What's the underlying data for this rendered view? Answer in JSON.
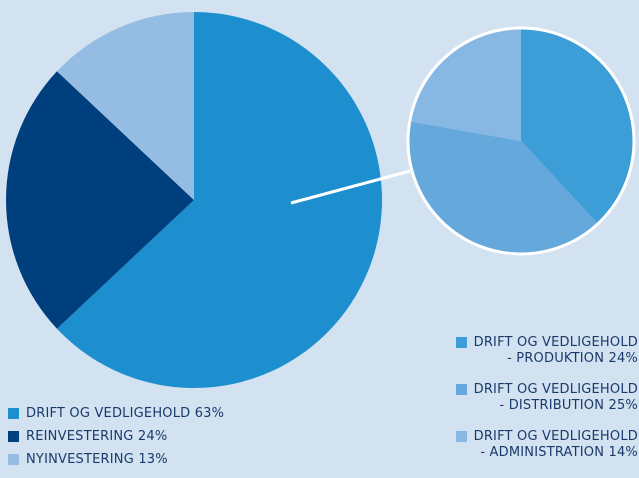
{
  "chart_data": [
    {
      "type": "pie",
      "slices": [
        {
          "label": "DRIFT OG VEDLIGEHOLD 63%",
          "value": 63,
          "color": "#1d8fce"
        },
        {
          "label": "REINVESTERING 24%",
          "value": 24,
          "color": "#003f7d"
        },
        {
          "label": "NYINVESTERING 13%",
          "value": 13,
          "color": "#95bde3"
        }
      ],
      "legend_position": "bottom-left"
    },
    {
      "type": "pie",
      "breakdown_of": "DRIFT OG VEDLIGEHOLD",
      "slices": [
        {
          "label_line1": "DRIFT OG VEDLIGEHOLD",
          "label_line2": "- PRODUKTION 24%",
          "value": 24,
          "color": "#3d9dd6"
        },
        {
          "label_line1": "DRIFT OG VEDLIGEHOLD",
          "label_line2": "- DISTRIBUTION 25%",
          "value": 25,
          "color": "#65a8dc"
        },
        {
          "label_line1": "DRIFT OG VEDLIGEHOLD",
          "label_line2": "- ADMINISTRATION 14%",
          "value": 14,
          "color": "#87b8e3"
        }
      ],
      "legend_position": "bottom-right"
    }
  ],
  "colors": {
    "background": "#d3e2f1",
    "connector": "#ffffff",
    "text": "#1a3a6b"
  }
}
